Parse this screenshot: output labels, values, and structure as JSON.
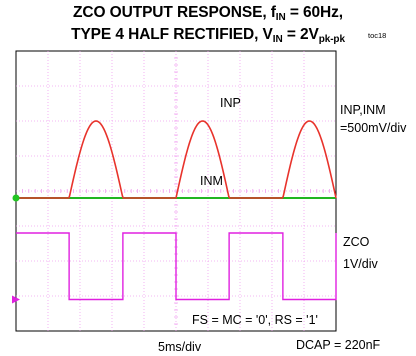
{
  "title": {
    "line1_prefix": "ZCO OUTPUT RESPONSE, f",
    "line1_sub": "IN",
    "line1_suffix": " = 60Hz,",
    "line2_prefix": "TYPE 4 HALF RECTIFIED, V",
    "line2_sub": "IN",
    "line2_mid": " = 2V",
    "line2_sub2": "pk-pk"
  },
  "figure_tag": "toc18",
  "labels": {
    "inp_trace": "INP",
    "inm_trace": "INM",
    "inp_inm_scale_name": "INP,INM",
    "inp_inm_scale": "=500mV/div",
    "zco_name": "ZCO",
    "zco_scale": "1V/div",
    "conditions": "FS = MC = '0', RS = '1'",
    "timebase": "5ms/div",
    "dcap": "DCAP = 220nF"
  },
  "colors": {
    "inp": "#e8332c",
    "inm": "#22b522",
    "zco": "#e020e0",
    "grid": "#f0a0f0",
    "frame": "#000000",
    "marker_ch1": "#22c522",
    "marker_ch2": "#e020e0"
  },
  "chart_data": {
    "type": "line",
    "grid": true,
    "time_per_div_ms": 5,
    "x_divisions": 10,
    "xlim_ms": [
      0,
      50
    ],
    "signal_frequency_hz": 60,
    "series": [
      {
        "name": "INP",
        "scale": "500mV/div",
        "baseline_div": 0,
        "peak_div": 2.2,
        "waveform": "half-rectified sine",
        "positive_half_cycles_ms": [
          [
            8.3,
            16.7
          ],
          [
            25.0,
            33.3
          ],
          [
            41.7,
            50.0
          ]
        ]
      },
      {
        "name": "INM",
        "scale": "500mV/div",
        "level_div": 0
      },
      {
        "name": "ZCO",
        "scale": "1V/div",
        "high_div": 1.0,
        "low_div": -0.9,
        "transitions_ms": [
          8.3,
          16.7,
          25.0,
          33.3,
          41.7,
          50.0
        ],
        "initial_state": "high"
      }
    ]
  }
}
